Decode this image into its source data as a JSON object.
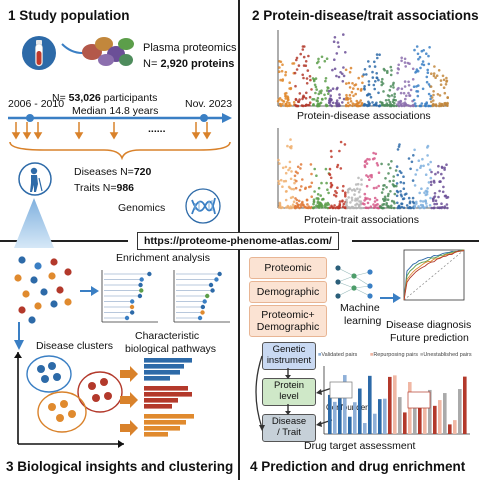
{
  "panel1": {
    "title": "1 Study population",
    "plasma_label": "Plasma proteomics",
    "proteins_prefix": "N= ",
    "proteins_value": "2,920 proteins",
    "participants_prefix": "N= ",
    "participants_value": "53,026",
    "participants_suffix": " participants",
    "median": "Median 14.8 years",
    "start_period": "2006 - 2010",
    "end_period": "Nov. 2023",
    "dots": "......",
    "diseases_prefix": "Diseases N=",
    "diseases_value": "720",
    "traits_prefix": "Traits N=",
    "traits_value": "986",
    "genomics": "Genomics"
  },
  "panel2": {
    "title": "2 Protein-disease/trait associations",
    "plot1_caption": "Protein-disease associations",
    "plot2_caption": "Protein-trait associations"
  },
  "url": "https://proteome-phenome-atlas.com/",
  "panel3": {
    "title": "3 Biological insights and clustering",
    "enrichment": "Enrichment analysis",
    "clusters": "Disease clusters",
    "pathways_line1": "Characteristic",
    "pathways_line2": "biological pathways"
  },
  "panel4": {
    "title": "4 Prediction and drug enrichment",
    "proteomic": "Proteomic",
    "demographic": "Demographic",
    "combo_line1": "Proteomic+",
    "combo_line2": "Demographic",
    "ml_line1": "Machine",
    "ml_line2": "learning",
    "diagnosis": "Disease diagnosis",
    "future": "Future prediction",
    "genetic_line1": "Genetic",
    "genetic_line2": "instrument",
    "protein_line1": "Protein",
    "protein_line2": "level",
    "disease_line1": "Disease",
    "disease_line2": "/ Trait",
    "confounders": "Confounders",
    "legend_validated": "Validated pairs",
    "legend_repurposing": "Repurposing pairs",
    "legend_unestablished": "Unestablished pairs",
    "drug_target": "Drug target  assessment"
  },
  "colors": {
    "arrow_blue": "#3a7fc4",
    "timeline_orange": "#d9822b",
    "pill_fill": "#fbe3d3",
    "genetic_fill": "#c9d9f2",
    "protein_fill": "#cfe8c8",
    "disease_fill": "#c6d0d8"
  }
}
